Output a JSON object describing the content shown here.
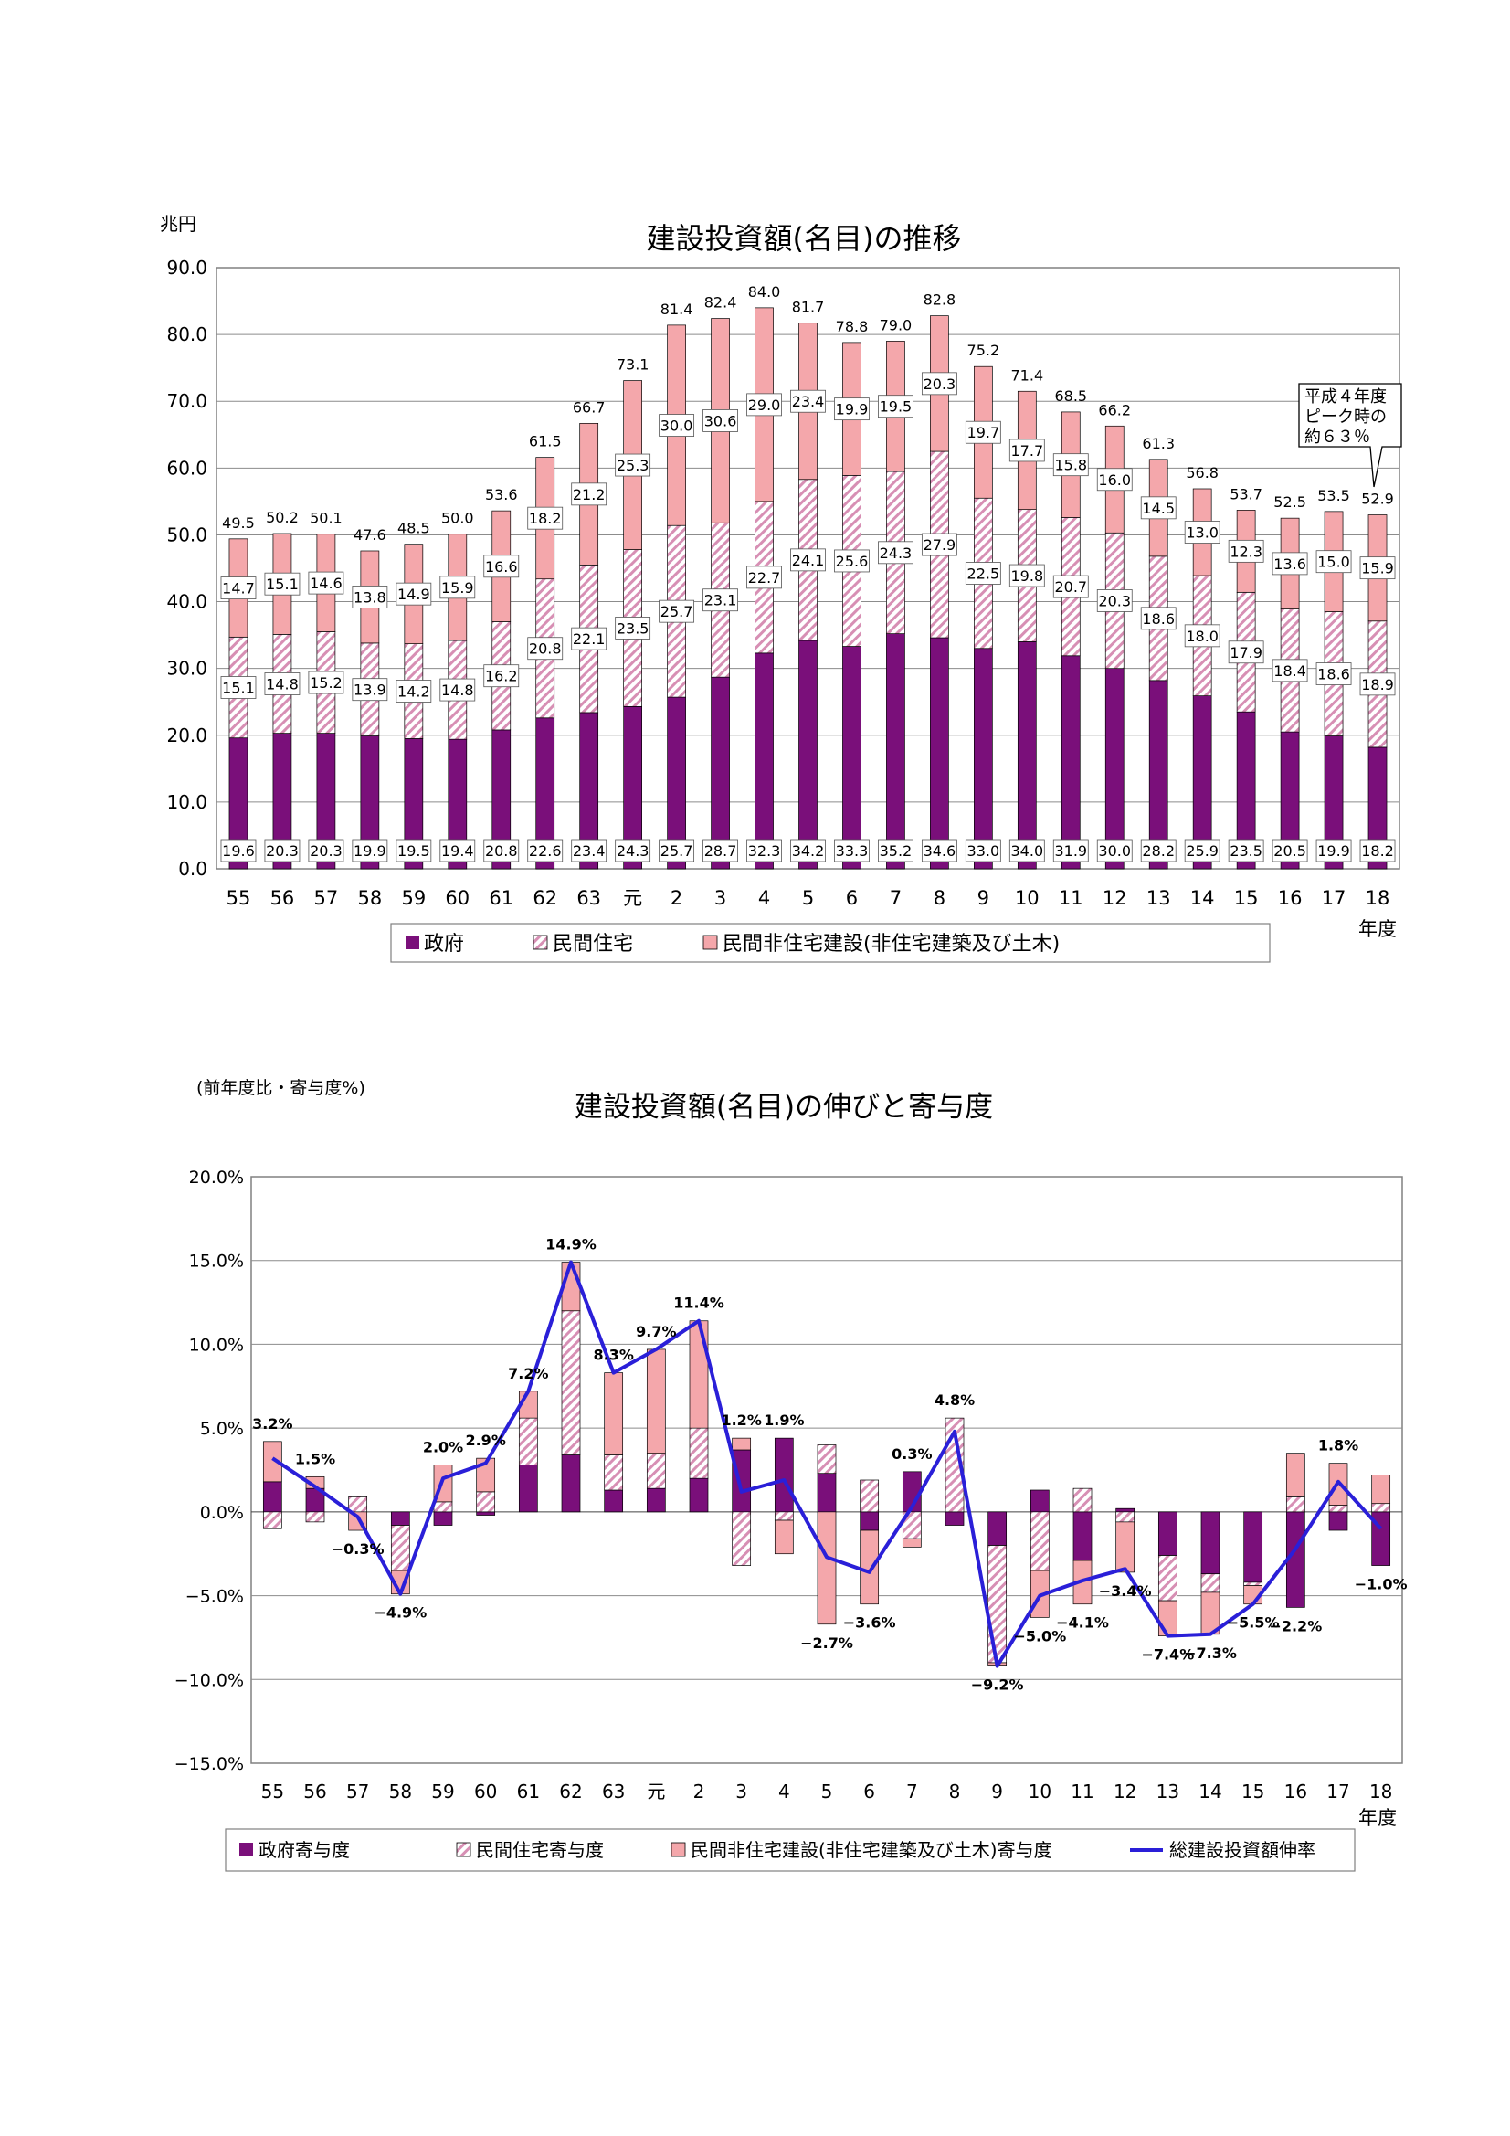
{
  "colors": {
    "gov": "#7a0f7a",
    "res": "#d78fb4",
    "nonres": "#f4a7ab",
    "line": "#2a1fd8",
    "grid": "#8c8c8c"
  },
  "chart_data": [
    {
      "type": "bar",
      "stacked": true,
      "title": "建設投資額(名目)の推移",
      "unit": "兆円",
      "xlabel": "年度",
      "ylim": [
        0,
        90
      ],
      "y_ticks": [
        "0.0",
        "10.0",
        "20.0",
        "30.0",
        "40.0",
        "50.0",
        "60.0",
        "70.0",
        "80.0",
        "90.0"
      ],
      "grid": true,
      "legend_position": "bottom",
      "categories": [
        "55",
        "56",
        "57",
        "58",
        "59",
        "60",
        "61",
        "62",
        "63",
        "元",
        "2",
        "3",
        "4",
        "5",
        "6",
        "7",
        "8",
        "9",
        "10",
        "11",
        "12",
        "13",
        "14",
        "15",
        "16",
        "17",
        "18"
      ],
      "totals": [
        "49.5",
        "50.2",
        "50.1",
        "47.6",
        "48.5",
        "50.0",
        "53.6",
        "61.5",
        "66.7",
        "73.1",
        "81.4",
        "82.4",
        "84.0",
        "81.7",
        "78.8",
        "79.0",
        "82.8",
        "75.2",
        "71.4",
        "68.5",
        "66.2",
        "61.3",
        "56.8",
        "53.7",
        "52.5",
        "53.5",
        "52.9"
      ],
      "series": [
        {
          "name": "政府",
          "key": "gov",
          "values": [
            19.6,
            20.3,
            20.3,
            19.9,
            19.5,
            19.4,
            20.8,
            22.6,
            23.4,
            24.3,
            25.7,
            28.7,
            32.3,
            34.2,
            33.3,
            35.2,
            34.6,
            33.0,
            34.0,
            31.9,
            30.0,
            28.2,
            25.9,
            23.5,
            20.5,
            19.9,
            18.2
          ],
          "labels": [
            "19.6",
            "20.3",
            "20.3",
            "19.9",
            "19.5",
            "19.4",
            "20.8",
            "22.6",
            "23.4",
            "24.3",
            "25.7",
            "28.7",
            "32.3",
            "34.2",
            "33.3",
            "35.2",
            "34.6",
            "33.0",
            "34.0",
            "31.9",
            "30.0",
            "28.2",
            "25.9",
            "23.5",
            "20.5",
            "19.9",
            "18.2"
          ]
        },
        {
          "name": "民間住宅",
          "key": "res",
          "values": [
            15.1,
            14.8,
            15.2,
            13.9,
            14.2,
            14.8,
            16.2,
            20.8,
            22.1,
            23.5,
            25.7,
            23.1,
            22.7,
            24.1,
            25.6,
            24.3,
            27.9,
            22.5,
            19.8,
            20.7,
            20.3,
            18.6,
            18.0,
            17.9,
            18.4,
            18.6,
            18.9
          ],
          "labels": [
            "15.1",
            "14.8",
            "15.2",
            "13.9",
            "14.2",
            "14.8",
            "16.2",
            "20.8",
            "22.1",
            "23.5",
            "25.7",
            "23.1",
            "22.7",
            "24.1",
            "25.6",
            "24.3",
            "27.9",
            "22.5",
            "19.8",
            "20.7",
            "20.3",
            "18.6",
            "18.0",
            "17.9",
            "18.4",
            "18.6",
            "18.9"
          ]
        },
        {
          "name": "民間非住宅建設(非住宅建築及び土木)",
          "key": "nonres",
          "values": [
            14.7,
            15.1,
            14.6,
            13.8,
            14.9,
            15.9,
            16.6,
            18.2,
            21.2,
            25.3,
            30.0,
            30.6,
            29.0,
            23.4,
            19.9,
            19.5,
            20.3,
            19.7,
            17.7,
            15.8,
            16.0,
            14.5,
            13.0,
            12.3,
            13.6,
            15.0,
            15.9
          ],
          "labels": [
            "14.7",
            "15.1",
            "14.6",
            "13.8",
            "14.9",
            "15.9",
            "16.6",
            "18.2",
            "21.2",
            "25.3",
            "30.0",
            "30.6",
            "29.0",
            "23.4",
            "19.9",
            "19.5",
            "20.3",
            "19.7",
            "17.7",
            "15.8",
            "16.0",
            "14.5",
            "13.0",
            "12.3",
            "13.6",
            "15.0",
            "15.9"
          ]
        }
      ],
      "callout": {
        "lines": [
          "平成４年度",
          "ピーク時の",
          "約６３％"
        ]
      }
    },
    {
      "type": "bar",
      "stacked": true,
      "with_line": true,
      "title": "建設投資額(名目)の伸びと寄与度",
      "unit": "(前年度比・寄与度%)",
      "xlabel": "年度",
      "ylim": [
        -15,
        20
      ],
      "y_ticks": [
        "−15.0%",
        "−10.0%",
        "−5.0%",
        "0.0%",
        "5.0%",
        "10.0%",
        "15.0%",
        "20.0%"
      ],
      "grid": true,
      "legend_position": "bottom",
      "categories": [
        "55",
        "56",
        "57",
        "58",
        "59",
        "60",
        "61",
        "62",
        "63",
        "元",
        "2",
        "3",
        "4",
        "5",
        "6",
        "7",
        "8",
        "9",
        "10",
        "11",
        "12",
        "13",
        "14",
        "15",
        "16",
        "17",
        "18"
      ],
      "series": [
        {
          "name": "政府寄与度",
          "key": "gov",
          "values": [
            1.8,
            1.4,
            0.0,
            -0.8,
            -0.8,
            -0.2,
            2.8,
            3.4,
            1.3,
            1.4,
            2.0,
            3.7,
            4.4,
            2.3,
            -1.1,
            2.4,
            -0.8,
            -2.0,
            1.3,
            -2.9,
            0.2,
            -2.6,
            -3.7,
            -4.2,
            -5.7,
            -1.1,
            -3.2
          ]
        },
        {
          "name": "民間住宅寄与度",
          "key": "res",
          "values": [
            -1.0,
            -0.6,
            0.9,
            -2.7,
            0.6,
            1.2,
            2.8,
            8.6,
            2.1,
            2.1,
            3.0,
            -3.2,
            -0.5,
            1.7,
            1.9,
            -1.6,
            5.6,
            -7.0,
            -3.5,
            1.4,
            -0.6,
            -2.7,
            -1.1,
            -0.2,
            0.9,
            0.4,
            0.5
          ]
        },
        {
          "name": "民間非住宅建設(非住宅建築及び土木)寄与度",
          "key": "nonres",
          "values": [
            2.4,
            0.7,
            -1.1,
            -1.4,
            2.2,
            2.0,
            1.6,
            2.9,
            4.9,
            6.2,
            6.4,
            0.7,
            -2.0,
            -6.7,
            -4.4,
            -0.5,
            0.0,
            -0.2,
            -2.8,
            -2.6,
            -3.0,
            -2.1,
            -2.5,
            -1.1,
            2.6,
            2.5,
            1.7
          ]
        }
      ],
      "line": {
        "name": "総建設投資額伸率",
        "values": [
          3.2,
          1.5,
          -0.3,
          -4.9,
          2.0,
          2.9,
          7.2,
          14.9,
          8.3,
          9.7,
          11.4,
          1.2,
          1.9,
          -2.7,
          -3.6,
          0.3,
          4.8,
          -9.2,
          -5.0,
          -4.1,
          -3.4,
          -7.4,
          -7.3,
          -5.5,
          -2.2,
          1.8,
          -1.0
        ],
        "labels": [
          "3.2%",
          "1.5%",
          "−0.3%",
          "−4.9%",
          "2.0%",
          "2.9%",
          "7.2%",
          "14.9%",
          "8.3%",
          "9.7%",
          "11.4%",
          "1.2%",
          "1.9%",
          "−2.7%",
          "−3.6%",
          "0.3%",
          "4.8%",
          "−9.2%",
          "−5.0%",
          "−4.1%",
          "−3.4%",
          "−7.4%",
          "−7.3%",
          "−5.5%",
          "−2.2%",
          "1.8%",
          "−1.0%"
        ]
      }
    }
  ]
}
